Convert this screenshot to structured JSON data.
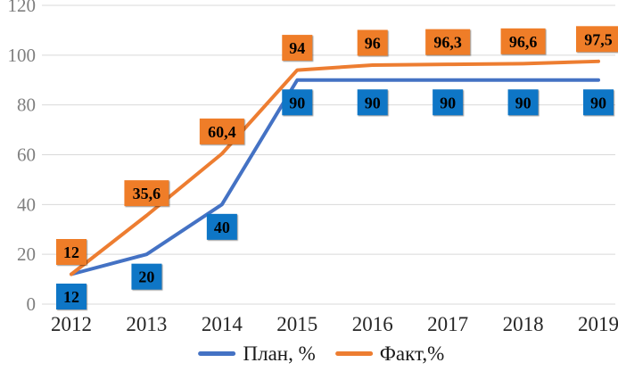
{
  "chart_data": {
    "type": "line",
    "title": "",
    "categories": [
      "2012",
      "2013",
      "2014",
      "2015",
      "2016",
      "2017",
      "2018",
      "2019"
    ],
    "series": [
      {
        "name": "План, %",
        "values": [
          12,
          20,
          40,
          90,
          90,
          90,
          90,
          90
        ],
        "labels": [
          "12",
          "20",
          "40",
          "90",
          "90",
          "90",
          "90",
          "90"
        ],
        "line_color": "#4472C4",
        "label_bg": "#0E76C6",
        "label_position": "below"
      },
      {
        "name": "Факт,%",
        "values": [
          12,
          35.6,
          60.4,
          94,
          96,
          96.3,
          96.6,
          97.5
        ],
        "labels": [
          "12",
          "35,6",
          "60,4",
          "94",
          "96",
          "96,3",
          "96,6",
          "97,5"
        ],
        "line_color": "#ED7D31",
        "label_bg": "#EF7D28",
        "label_position": "above"
      }
    ],
    "ylim": [
      0,
      120
    ],
    "yticks": [
      0,
      20,
      40,
      60,
      80,
      100,
      120
    ],
    "ytick_labels": [
      "0",
      "20",
      "40",
      "60",
      "80",
      "100",
      "120"
    ],
    "grid": "horizontal",
    "legend_position": "bottom",
    "colors": {
      "gridline": "#D9D9D9",
      "y_tick_text": "#7F7F7F",
      "x_tick_text": "#262626",
      "data_label_text": "#000000",
      "legend_text": "#1a1a1a",
      "background": "#FFFFFF"
    }
  }
}
